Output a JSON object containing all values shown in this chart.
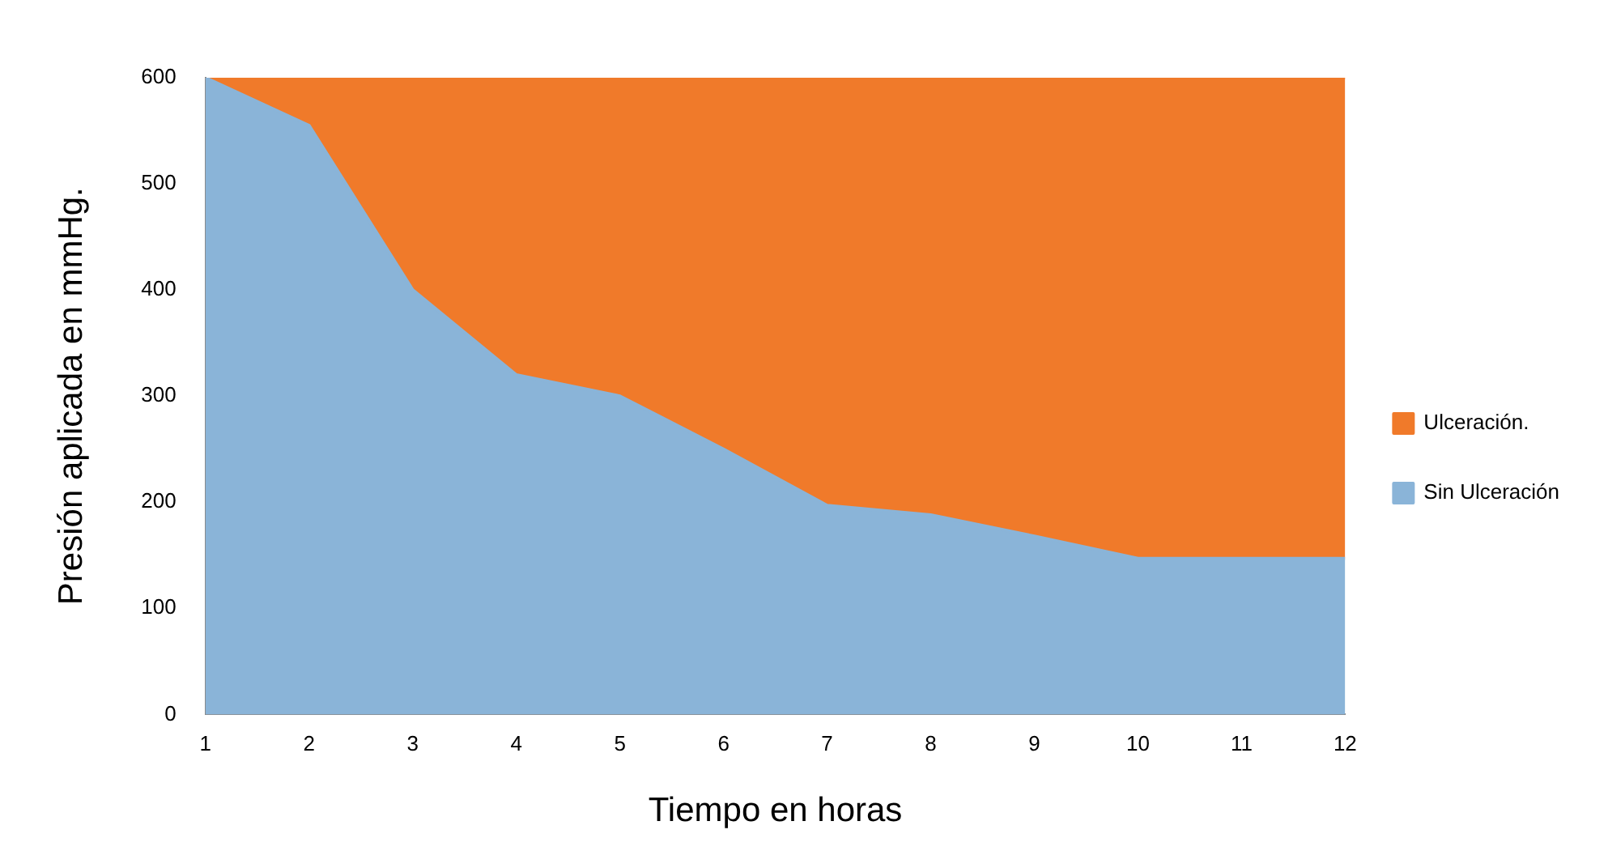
{
  "chart_data": {
    "type": "area",
    "stacked": true,
    "xlabel": "Tiempo en horas",
    "ylabel": "Presión aplicada en mmHg.",
    "x": [
      1,
      2,
      3,
      4,
      5,
      6,
      7,
      8,
      9,
      10,
      11,
      12
    ],
    "xlim": [
      1,
      12
    ],
    "xticks": [
      1,
      2,
      3,
      4,
      5,
      6,
      7,
      8,
      9,
      10,
      11,
      12
    ],
    "ylim": [
      0,
      600
    ],
    "yticks": [
      0,
      100,
      200,
      300,
      400,
      500,
      600
    ],
    "grid": false,
    "legend": "right",
    "series": [
      {
        "name": "Sin Ulceración",
        "color": "#8ab4d8",
        "values": [
          600,
          555,
          400,
          320,
          300,
          250,
          197,
          188,
          168,
          147,
          147,
          147
        ]
      },
      {
        "name": "Ulceración.",
        "color": "#f07a2a",
        "values": [
          0,
          45,
          200,
          280,
          300,
          350,
          403,
          412,
          432,
          453,
          453,
          453
        ]
      }
    ]
  }
}
